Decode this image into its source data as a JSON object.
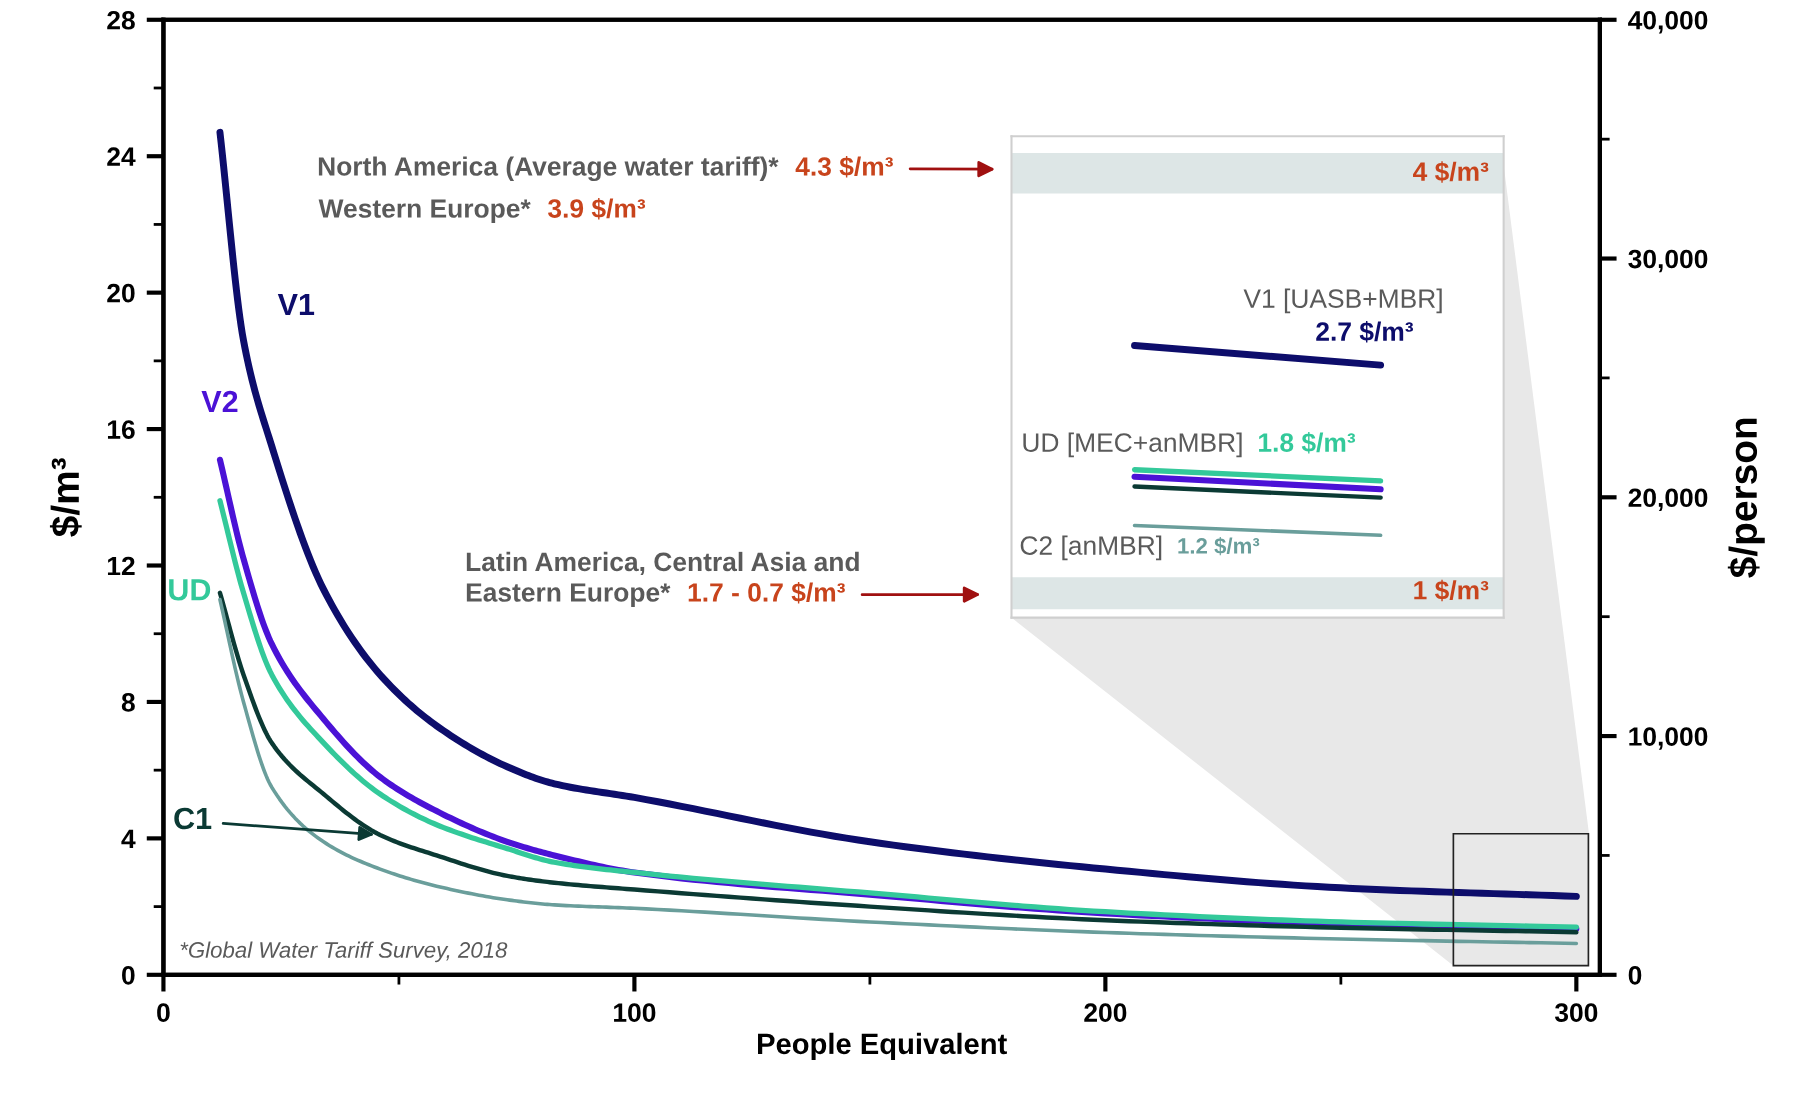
{
  "chart_data": [
    {
      "type": "line",
      "xlabel": "People Equivalent",
      "ylabel": "$/m³",
      "y2label": "$/person",
      "xlim": [
        0,
        305
      ],
      "xticks": [
        0,
        100,
        200,
        300
      ],
      "ylim": [
        0,
        28
      ],
      "yticks": [
        0,
        4,
        8,
        12,
        16,
        20,
        24,
        28
      ],
      "y2lim": [
        0,
        40000
      ],
      "y2ticks": [
        0,
        {
          "value": 10000,
          "label": "10,000"
        },
        {
          "value": 20000,
          "label": "20,000"
        },
        {
          "value": 30000,
          "label": "30,000"
        },
        {
          "value": 40000,
          "label": "40,000"
        }
      ],
      "x": [
        12,
        17,
        23,
        34,
        46,
        58,
        73,
        83,
        100,
        150,
        200,
        250,
        300
      ],
      "series": [
        {
          "name": "V1",
          "color": "#0d0d6b",
          "values": [
            24.7,
            18.6,
            15.5,
            11.3,
            8.8,
            7.3,
            6.1,
            5.6,
            5.2,
            3.9,
            3.1,
            2.55,
            2.3
          ]
        },
        {
          "name": "V2",
          "color": "#4b12d6",
          "values": [
            15.1,
            12.2,
            9.7,
            7.5,
            5.8,
            4.8,
            3.9,
            3.5,
            3.0,
            2.35,
            1.8,
            1.5,
            1.35
          ]
        },
        {
          "name": "UD",
          "color": "#33c99a",
          "values": [
            13.9,
            11.2,
            8.8,
            6.8,
            5.3,
            4.4,
            3.7,
            3.3,
            3.0,
            2.4,
            1.85,
            1.55,
            1.4
          ]
        },
        {
          "name": "C1",
          "color": "#0b3a34",
          "values": [
            11.2,
            8.8,
            6.8,
            5.3,
            4.1,
            3.5,
            2.9,
            2.7,
            2.5,
            2.0,
            1.6,
            1.38,
            1.25
          ]
        },
        {
          "color": "#6a9e9b",
          "values": [
            11.0,
            8.0,
            5.5,
            3.9,
            3.1,
            2.6,
            2.2,
            2.05,
            1.95,
            1.55,
            1.24,
            1.05,
            0.92
          ]
        }
      ],
      "annotations": [
        "North America (Average water tariff)*",
        "4.3 $/m³",
        "Western Europe*",
        "3.9 $/m³",
        "Latin America, Central Asia and",
        "Eastern Europe*",
        "1.7 - 0.7 $/m³",
        "*Global Water Tariff Survey, 2018"
      ],
      "grid": false,
      "legend": false,
      "marker": "none",
      "line_style": "solid"
    },
    {
      "type": "line",
      "categories": [
        null,
        null
      ],
      "ylim": [
        0.82,
        4.27
      ],
      "yticks": [
        {
          "value": 4,
          "label": "4 $/m³"
        },
        {
          "value": 1,
          "label": "1 $/m³"
        }
      ],
      "tick_labels": "y",
      "series": [
        {
          "color": "#0d0d6b",
          "values": [
            2.77,
            2.63
          ]
        },
        {
          "color": "#4b12d6",
          "values": [
            1.83,
            1.74
          ]
        },
        {
          "color": "#33c99a",
          "values": [
            1.88,
            1.8
          ]
        },
        {
          "color": "#0b3a34",
          "values": [
            1.76,
            1.68
          ]
        },
        {
          "color": "#6a9e9b",
          "values": [
            1.48,
            1.41
          ]
        }
      ],
      "bands": [
        {
          "axis": "y",
          "from": 3.86,
          "to": 4.15,
          "color": "#dde6e6"
        },
        {
          "axis": "y",
          "from": 0.88,
          "to": 1.11,
          "color": "#dde6e6"
        }
      ],
      "annotations": [
        "V1 [UASB+MBR]",
        "2.7 $/m³",
        "UD [MEC+anMBR]",
        "1.8 $/m³",
        "C2 [anMBR]",
        "1.2 $/m³"
      ],
      "grid": false,
      "legend": false,
      "marker": "none",
      "line_style": "solid"
    }
  ]
}
